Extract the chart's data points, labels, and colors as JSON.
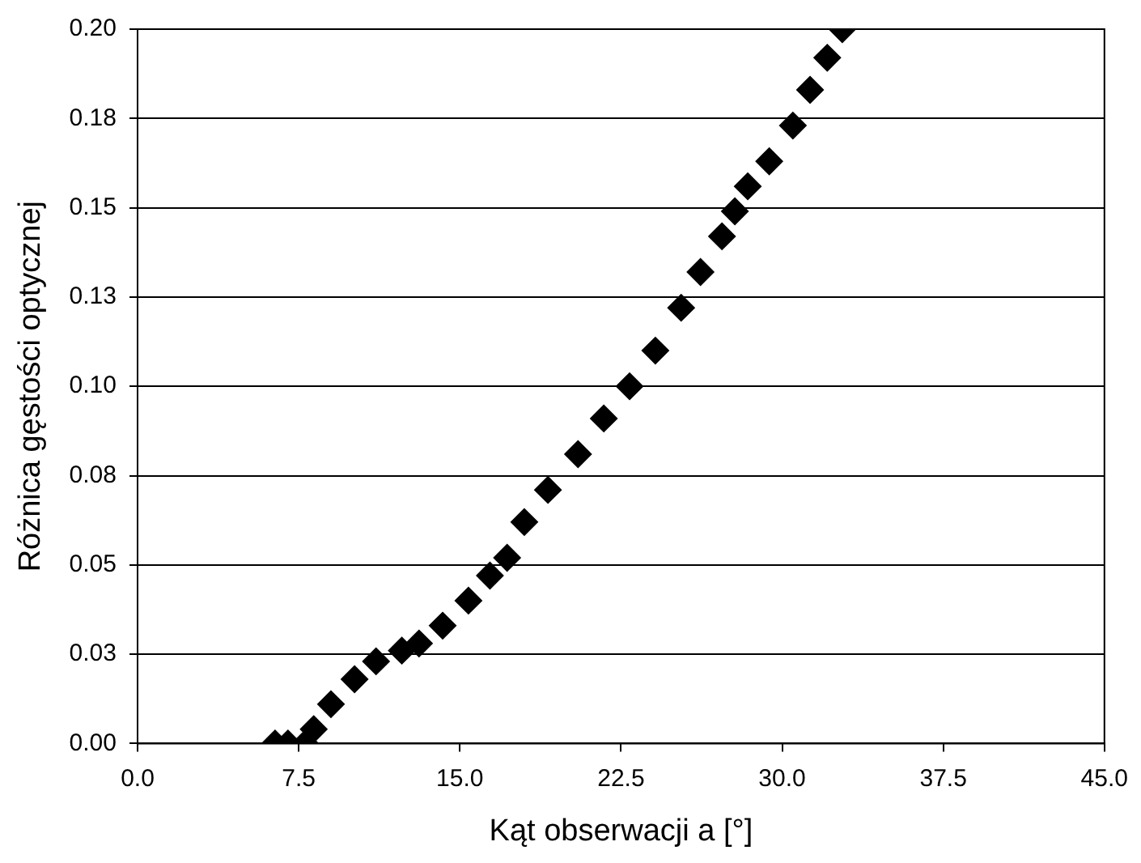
{
  "chart_data": {
    "type": "scatter",
    "xlabel": "Kąt obserwacji a [°]",
    "ylabel": "Różnica gęstości optycznej",
    "x": [
      6.4,
      7.0,
      7.8,
      8.2,
      9.0,
      10.1,
      11.1,
      12.3,
      13.1,
      14.2,
      15.4,
      16.4,
      17.2,
      18.0,
      19.1,
      20.5,
      21.7,
      22.9,
      24.1,
      25.3,
      26.2,
      27.2,
      27.8,
      28.4,
      29.4,
      30.5,
      31.3,
      32.1,
      32.8
    ],
    "values": [
      0,
      0,
      0,
      0.004,
      0.011,
      0.018,
      0.023,
      0.026,
      0.028,
      0.033,
      0.04,
      0.047,
      0.052,
      0.062,
      0.071,
      0.081,
      0.091,
      0.1,
      0.11,
      0.122,
      0.132,
      0.142,
      0.149,
      0.156,
      0.163,
      0.173,
      0.183,
      0.192,
      0.2
    ],
    "color": "#000000",
    "marker": "diamond",
    "grid": "y",
    "legend": false,
    "xlim": [
      0,
      45
    ],
    "xticks": [
      {
        "value": 0,
        "label": "0.0"
      },
      7.5,
      {
        "value": 15,
        "label": "15.0"
      },
      22.5,
      {
        "value": 30,
        "label": "30.0"
      },
      37.5,
      {
        "value": 45,
        "label": "45.0"
      }
    ],
    "ylim": [
      0,
      0.2
    ],
    "yticks": [
      {
        "value": 0,
        "label": "0.00"
      },
      {
        "value": 0.025,
        "label": "0.03"
      },
      {
        "value": 0.05,
        "label": "0.05"
      },
      {
        "value": 0.075,
        "label": "0.08"
      },
      {
        "value": 0.1,
        "label": "0.10"
      },
      {
        "value": 0.125,
        "label": "0.13"
      },
      {
        "value": 0.15,
        "label": "0.15"
      },
      {
        "value": 0.175,
        "label": "0.18"
      },
      {
        "value": 0.2,
        "label": "0.20"
      }
    ]
  }
}
